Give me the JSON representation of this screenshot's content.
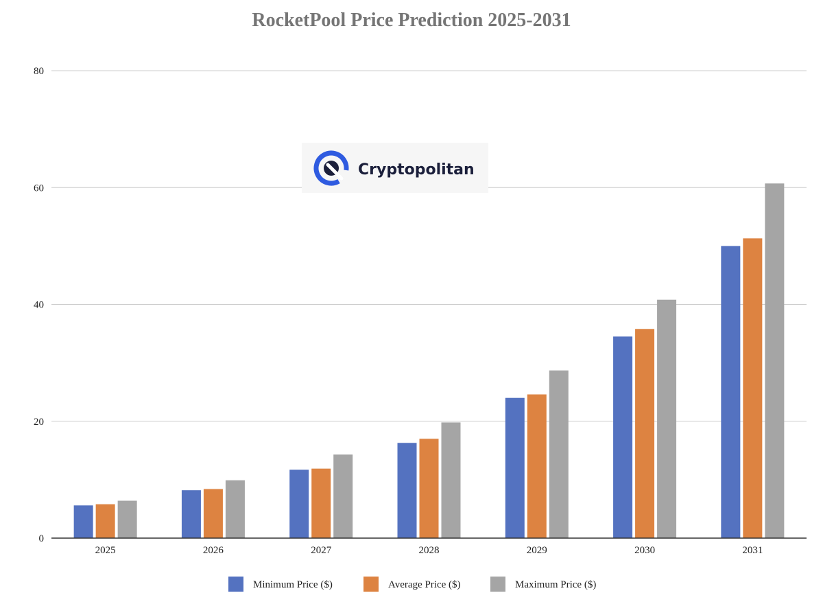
{
  "chart_data": {
    "type": "bar",
    "title": "RocketPool Price Prediction 2025-2031",
    "xlabel": "",
    "ylabel": "",
    "categories": [
      "2025",
      "2026",
      "2027",
      "2028",
      "2029",
      "2030",
      "2031"
    ],
    "series": [
      {
        "name": "Minimum Price ($)",
        "color": "#5472c0",
        "values": [
          5.6,
          8.2,
          11.7,
          16.3,
          24.0,
          34.5,
          50.0
        ]
      },
      {
        "name": "Average Price ($)",
        "color": "#dd8341",
        "values": [
          5.8,
          8.4,
          11.9,
          17.0,
          24.6,
          35.8,
          51.3
        ]
      },
      {
        "name": "Maximum Price ($)",
        "color": "#a5a5a5",
        "values": [
          6.4,
          9.9,
          14.3,
          19.8,
          28.7,
          40.8,
          60.7
        ]
      }
    ],
    "ylim": [
      0,
      80
    ],
    "yticks": [
      0,
      20,
      40,
      60,
      80
    ],
    "grid": true,
    "legend": "bottom"
  },
  "watermark": {
    "text": "Cryptopolitan",
    "colors": {
      "ring": "#2f5be0",
      "dark": "#1b1f3b"
    }
  }
}
